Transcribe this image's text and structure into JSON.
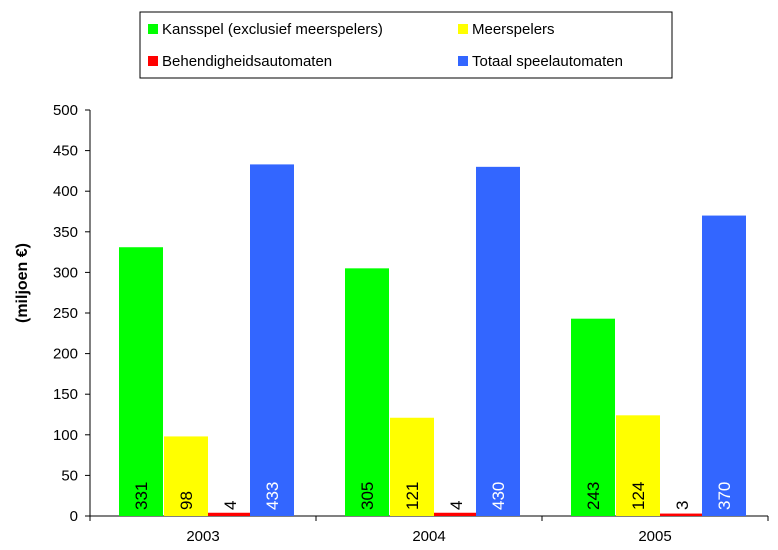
{
  "chart_data": {
    "type": "bar",
    "categories": [
      "2003",
      "2004",
      "2005"
    ],
    "series": [
      {
        "name": "Kansspel (exclusief meerspelers)",
        "color": "#00ff00",
        "values": [
          331,
          305,
          243
        ],
        "data_labels": [
          "331",
          "305",
          "243"
        ]
      },
      {
        "name": "Meerspelers",
        "color": "#ffff00",
        "values": [
          98,
          121,
          124
        ],
        "data_labels": [
          "98",
          "121",
          "124"
        ]
      },
      {
        "name": "Behendigheidsautomaten",
        "color": "#ff0000",
        "values": [
          4,
          4,
          3
        ],
        "data_labels": [
          "4",
          "4",
          "3"
        ]
      },
      {
        "name": "Totaal speelautomaten",
        "color": "#3366ff",
        "values": [
          433,
          430,
          370
        ],
        "data_labels": [
          "433",
          "430",
          "370"
        ]
      }
    ],
    "ylabel": "(miljoen €)",
    "ylim": [
      0,
      500
    ],
    "yticks": [
      0,
      50,
      100,
      150,
      200,
      250,
      300,
      350,
      400,
      450,
      500
    ],
    "ytick_labels": [
      "0",
      "50",
      "100",
      "150",
      "200",
      "250",
      "300",
      "350",
      "400",
      "450",
      "500"
    ],
    "grid": false,
    "legend_placement": "top-center",
    "data_label_orientation": "vertical"
  }
}
